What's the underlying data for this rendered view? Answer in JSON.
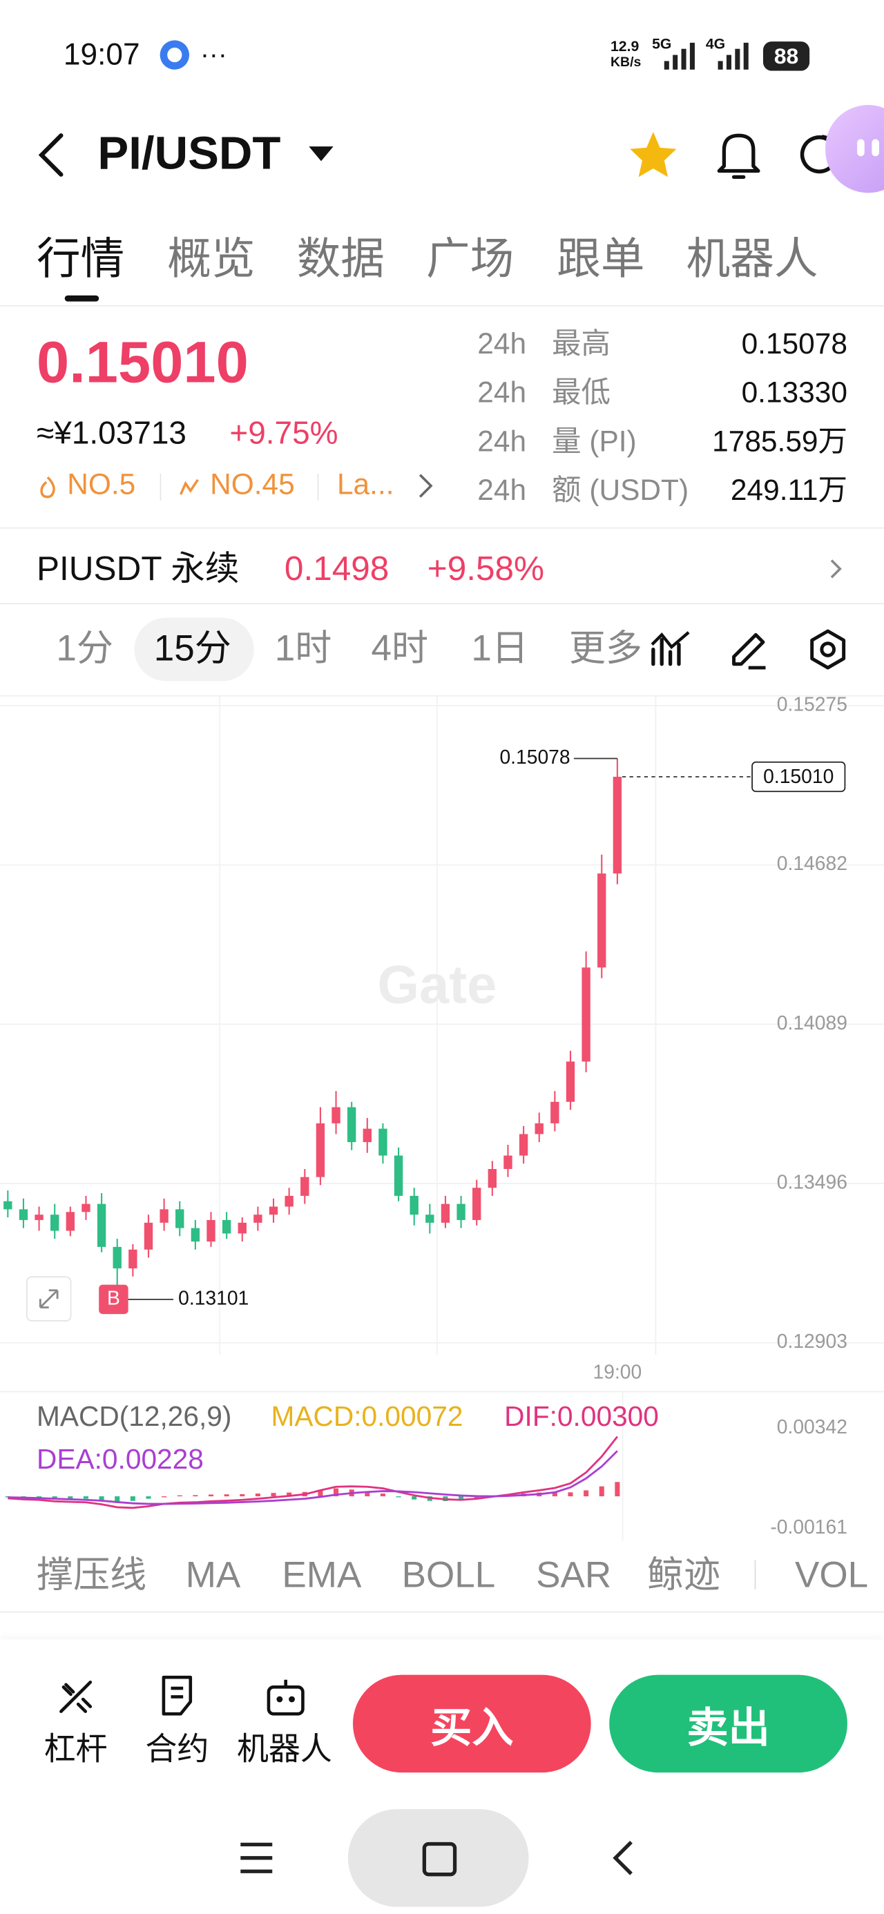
{
  "status_bar": {
    "time": "19:07",
    "speed": "12.9",
    "speed_unit": "KB/s",
    "network_1": "5G",
    "network_2": "4G",
    "battery": "88"
  },
  "header": {
    "pair": "PI/USDT"
  },
  "tabs": [
    "行情",
    "概览",
    "数据",
    "广场",
    "跟单",
    "机器人"
  ],
  "ticker": {
    "price": "0.15010",
    "cny": "≈¥1.03713",
    "change": "+9.75%",
    "badges": [
      "NO.5",
      "NO.45",
      "La..."
    ]
  },
  "stats": [
    {
      "period": "24h",
      "label": "最高",
      "value": "0.15078"
    },
    {
      "period": "24h",
      "label": "最低",
      "value": "0.13330"
    },
    {
      "period": "24h",
      "label": "量 (PI)",
      "value": "1785.59万"
    },
    {
      "period": "24h",
      "label": "额 (USDT)",
      "value": "249.11万"
    }
  ],
  "perpetual": {
    "name": "PIUSDT 永续",
    "price": "0.1498",
    "change": "+9.58%"
  },
  "intervals": [
    "1分",
    "15分",
    "1时",
    "4时",
    "1日",
    "更多"
  ],
  "chart_data": [
    {
      "type": "candlestick",
      "watermark": "Gate",
      "categories": [
        null,
        null,
        null,
        null,
        null,
        null,
        null,
        null,
        null,
        null,
        null,
        null,
        null,
        null,
        null,
        null,
        null,
        null,
        null,
        null,
        null,
        null,
        null,
        null,
        null,
        null,
        null,
        null,
        null,
        null,
        null,
        null,
        null,
        null,
        null,
        null,
        null,
        null,
        null,
        "19:00"
      ],
      "open": [
        0.1343,
        0.134,
        0.1336,
        0.1338,
        0.1332,
        0.1339,
        0.1342,
        0.1326,
        0.1318,
        0.1325,
        0.1335,
        0.134,
        0.1333,
        0.1328,
        0.1336,
        0.1331,
        0.1335,
        0.1338,
        0.1341,
        0.1345,
        0.1352,
        0.1372,
        0.1378,
        0.1365,
        0.137,
        0.136,
        0.1345,
        0.1338,
        0.1335,
        0.1342,
        0.1336,
        0.1348,
        0.1355,
        0.136,
        0.1368,
        0.1372,
        0.138,
        0.1395,
        0.143,
        0.1465
      ],
      "high": [
        0.1347,
        0.1344,
        0.1341,
        0.1342,
        0.1341,
        0.1345,
        0.1346,
        0.1329,
        0.1327,
        0.1338,
        0.1344,
        0.1343,
        0.1336,
        0.1339,
        0.1339,
        0.1337,
        0.1341,
        0.1344,
        0.1348,
        0.1355,
        0.1378,
        0.1384,
        0.138,
        0.1374,
        0.1372,
        0.1363,
        0.1348,
        0.1342,
        0.1345,
        0.1345,
        0.1351,
        0.1358,
        0.1364,
        0.1371,
        0.1376,
        0.1384,
        0.1399,
        0.1436,
        0.1472,
        0.15078
      ],
      "low": [
        0.1337,
        0.1333,
        0.1332,
        0.1329,
        0.133,
        0.1336,
        0.1324,
        0.13101,
        0.1315,
        0.1322,
        0.1332,
        0.133,
        0.1325,
        0.1326,
        0.1329,
        0.1328,
        0.1332,
        0.1335,
        0.1338,
        0.1342,
        0.1349,
        0.1368,
        0.1362,
        0.1361,
        0.1357,
        0.1343,
        0.1334,
        0.1331,
        0.1333,
        0.1333,
        0.1334,
        0.1345,
        0.1352,
        0.1357,
        0.1365,
        0.1369,
        0.1377,
        0.1391,
        0.1426,
        0.1461
      ],
      "close": [
        0.134,
        0.1336,
        0.1338,
        0.1332,
        0.1339,
        0.1342,
        0.1326,
        0.1318,
        0.1325,
        0.1335,
        0.134,
        0.1333,
        0.1328,
        0.1336,
        0.1331,
        0.1335,
        0.1338,
        0.1341,
        0.1345,
        0.1352,
        0.1372,
        0.1378,
        0.1365,
        0.137,
        0.136,
        0.1345,
        0.1338,
        0.1335,
        0.1342,
        0.1336,
        0.1348,
        0.1355,
        0.136,
        0.1368,
        0.1372,
        0.138,
        0.1395,
        0.143,
        0.1465,
        0.1501
      ],
      "up_color": "#f0506e",
      "down_color": "#2ebd85",
      "ylim": [
        0.12903,
        0.15275
      ],
      "yticks": [
        0.15275,
        0.14682,
        0.14089,
        0.13496,
        0.12903
      ],
      "grid": true,
      "high_marker": 0.15078,
      "low_marker": 0.13101,
      "buy_marker": "B",
      "last_price": {
        "value": 0.1501,
        "label": "0.15010"
      }
    },
    {
      "type": "macd",
      "title": "MACD(12,26,9)",
      "series": [
        {
          "label": "MACD:0.00072",
          "color": "#e8b21b",
          "up_color": "#f0506e",
          "down_color": "#2ebd85",
          "values": [
            -5e-05,
            -8e-05,
            -9e-05,
            -0.00013,
            -0.00013,
            -0.00012,
            -0.00018,
            -0.00026,
            -0.00023,
            -0.00012,
            0.0,
            5e-05,
            6e-05,
            9e-05,
            0.0001,
            0.00011,
            0.00014,
            0.00017,
            0.00019,
            0.00022,
            0.00033,
            0.0004,
            0.00034,
            0.00026,
            0.00014,
            -3e-05,
            -0.00016,
            -0.00023,
            -0.00024,
            -0.00022,
            -0.00013,
            -2e-05,
            6e-05,
            0.00014,
            0.00019,
            0.00022,
            0.0002,
            0.0003,
            0.0005,
            0.00072
          ]
        },
        {
          "label": "DIF:0.00300",
          "color": "#e0337f",
          "values": [
            -0.0001,
            -0.00015,
            -0.00018,
            -0.00025,
            -0.00028,
            -0.0003,
            -0.0004,
            -0.00055,
            -0.00058,
            -0.0005,
            -0.00038,
            -0.00032,
            -0.0003,
            -0.00025,
            -0.00022,
            -0.00018,
            -0.00012,
            -5e-05,
            2e-05,
            0.0001,
            0.0003,
            0.00048,
            0.0005,
            0.00048,
            0.0004,
            0.00022,
            5e-05,
            -8e-05,
            -0.00015,
            -0.00018,
            -0.00012,
            -2e-05,
            8e-05,
            0.0002,
            0.0003,
            0.00042,
            0.00065,
            0.0012,
            0.002,
            0.003
          ]
        },
        {
          "label": "DEA:0.00228",
          "color": "#a93fd0",
          "values": [
            -5e-05,
            -7e-05,
            -9e-05,
            -0.00012,
            -0.00015,
            -0.00018,
            -0.00022,
            -0.00029,
            -0.00035,
            -0.00038,
            -0.00038,
            -0.00037,
            -0.00036,
            -0.00034,
            -0.00032,
            -0.00029,
            -0.00026,
            -0.00022,
            -0.00017,
            -0.00012,
            -3e-05,
            8e-05,
            0.00016,
            0.00022,
            0.00026,
            0.00025,
            0.00021,
            0.00015,
            9e-05,
            4e-05,
            1e-05,
            0.0,
            2e-05,
            6e-05,
            0.00011,
            0.0002,
            0.00045,
            0.0009,
            0.0015,
            0.00228
          ]
        }
      ],
      "ylim": [
        -0.00161,
        0.00342
      ],
      "yticks": [
        0.00342,
        -0.00161
      ]
    }
  ],
  "indicators": [
    "撑压线",
    "MA",
    "EMA",
    "BOLL",
    "SAR",
    "鲸迹",
    "VOL"
  ],
  "toolbar": [
    "杠杆",
    "合约",
    "机器人"
  ],
  "actions": {
    "buy": "买入",
    "sell": "卖出"
  }
}
